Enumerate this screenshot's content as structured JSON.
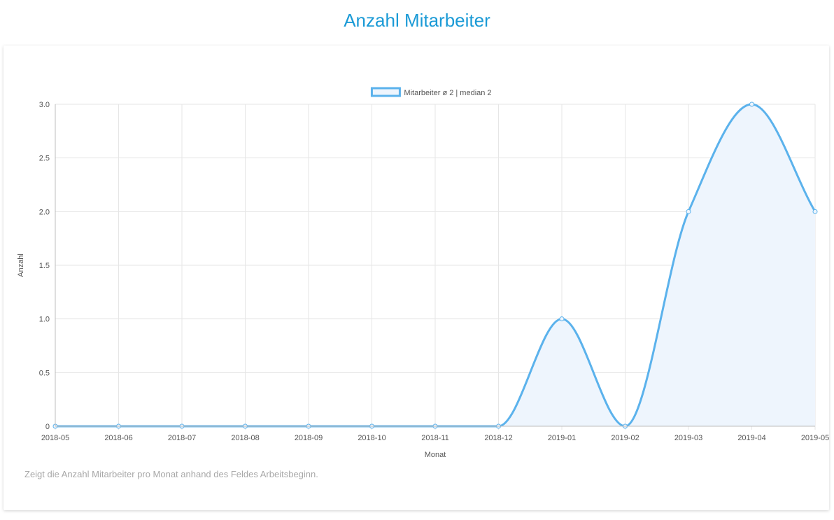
{
  "page": {
    "title": "Anzahl Mitarbeiter",
    "description": "Zeigt die Anzahl Mitarbeiter pro Monat anhand des Feldes Arbeitsbeginn."
  },
  "chart_data": {
    "type": "line",
    "title": "",
    "xlabel": "Monat",
    "ylabel": "Anzahl",
    "categories": [
      "2018-05",
      "2018-06",
      "2018-07",
      "2018-08",
      "2018-09",
      "2018-10",
      "2018-11",
      "2018-12",
      "2019-01",
      "2019-02",
      "2019-03",
      "2019-04",
      "2019-05"
    ],
    "series": [
      {
        "name": "Mitarbeiter ø 2 | median 2",
        "values": [
          0,
          0,
          0,
          0,
          0,
          0,
          0,
          0,
          1,
          0,
          2,
          3,
          2
        ],
        "color": "#5bb2ec",
        "fill": "#eef5fd"
      }
    ],
    "ylim": [
      0,
      3
    ],
    "yticks": [
      0,
      0.5,
      1,
      1.5,
      2,
      2.5,
      3
    ],
    "ytick_labels": [
      "0",
      "0.5",
      "1.0",
      "1.5",
      "2.0",
      "2.5",
      "3.0"
    ],
    "grid": true,
    "legend": "top-center",
    "curve": "smooth"
  }
}
